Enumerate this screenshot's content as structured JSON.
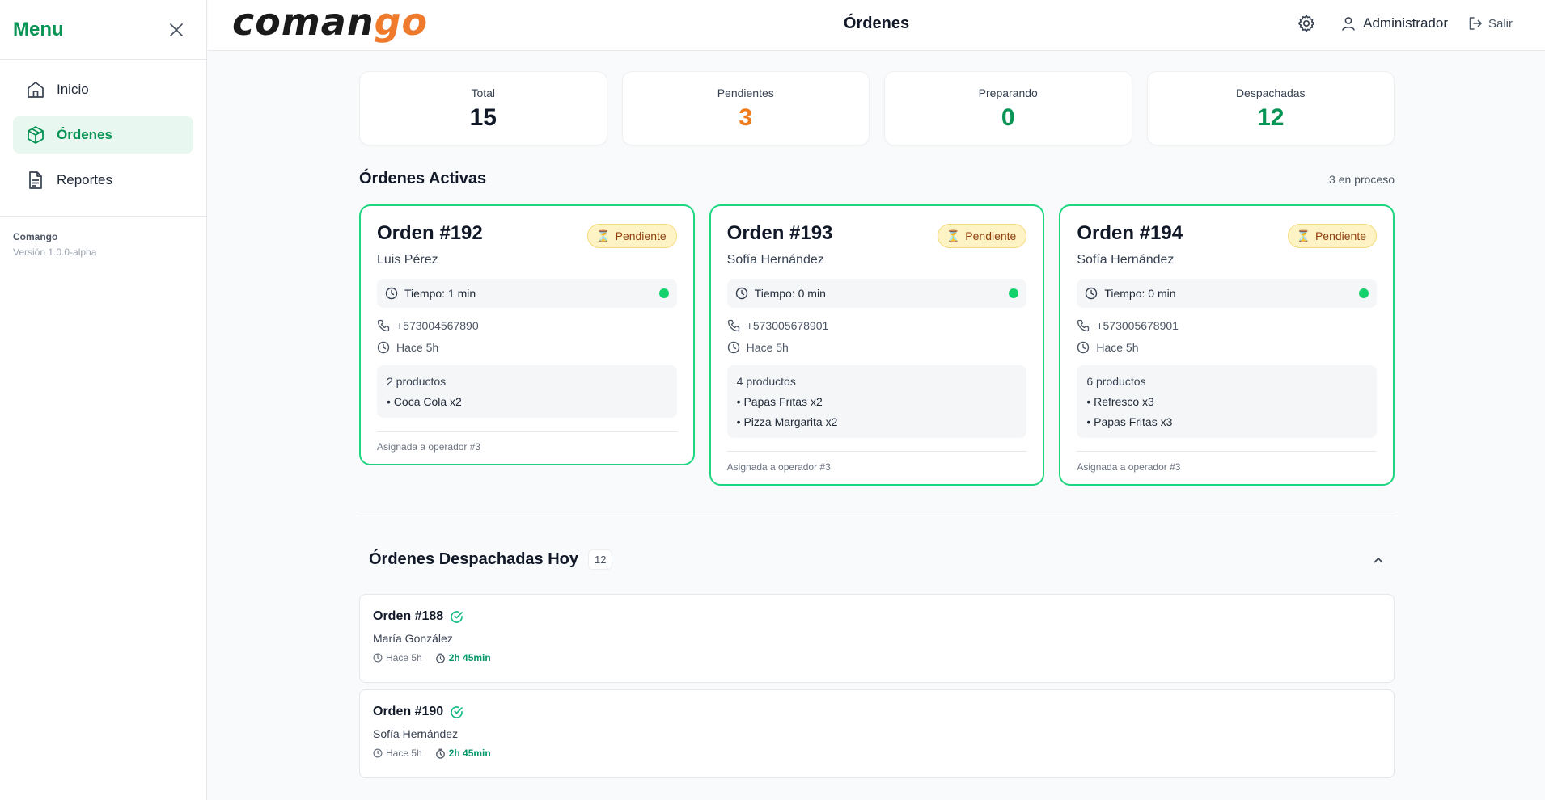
{
  "sidebar": {
    "title": "Menu",
    "items": [
      {
        "label": "Inicio",
        "icon": "home-icon",
        "active": false
      },
      {
        "label": "Órdenes",
        "icon": "package-icon",
        "active": true
      },
      {
        "label": "Reportes",
        "icon": "file-text-icon",
        "active": false
      }
    ],
    "app_name": "Comango",
    "version": "Versión 1.0.0-alpha"
  },
  "header": {
    "logo_part1": "coman",
    "logo_part2": "go",
    "title": "Órdenes",
    "user": "Administrador",
    "logout": "Salir"
  },
  "stats": [
    {
      "label": "Total",
      "value": "15",
      "color": "#111827"
    },
    {
      "label": "Pendientes",
      "value": "3",
      "color": "#ef7b1a"
    },
    {
      "label": "Preparando",
      "value": "0",
      "color": "#079455"
    },
    {
      "label": "Despachadas",
      "value": "12",
      "color": "#079455"
    }
  ],
  "active": {
    "title": "Órdenes Activas",
    "count_text": "3 en proceso",
    "orders": [
      {
        "title": "Orden #192",
        "status": "Pendiente",
        "customer": "Luis Pérez",
        "timer": "Tiempo: 1 min",
        "phone": "+573004567890",
        "ago": "Hace 5h",
        "products_count": "2 productos",
        "products": [
          "• Coca Cola x2"
        ],
        "assigned": "Asignada a operador #3"
      },
      {
        "title": "Orden #193",
        "status": "Pendiente",
        "customer": "Sofía Hernández",
        "timer": "Tiempo: 0 min",
        "phone": "+573005678901",
        "ago": "Hace 5h",
        "products_count": "4 productos",
        "products": [
          "• Papas Fritas x2",
          "• Pizza Margarita x2"
        ],
        "assigned": "Asignada a operador #3"
      },
      {
        "title": "Orden #194",
        "status": "Pendiente",
        "customer": "Sofía Hernández",
        "timer": "Tiempo: 0 min",
        "phone": "+573005678901",
        "ago": "Hace 5h",
        "products_count": "6 productos",
        "products": [
          "• Refresco x3",
          "• Papas Fritas x3"
        ],
        "assigned": "Asignada a operador #3"
      }
    ]
  },
  "dispatched": {
    "title": "Órdenes Despachadas Hoy",
    "count": "12",
    "orders": [
      {
        "title": "Orden #188",
        "customer": "María González",
        "ago": "Hace 5h",
        "duration": "2h 45min"
      },
      {
        "title": "Orden #190",
        "customer": "Sofía Hernández",
        "ago": "Hace 5h",
        "duration": "2h 45min"
      }
    ]
  }
}
